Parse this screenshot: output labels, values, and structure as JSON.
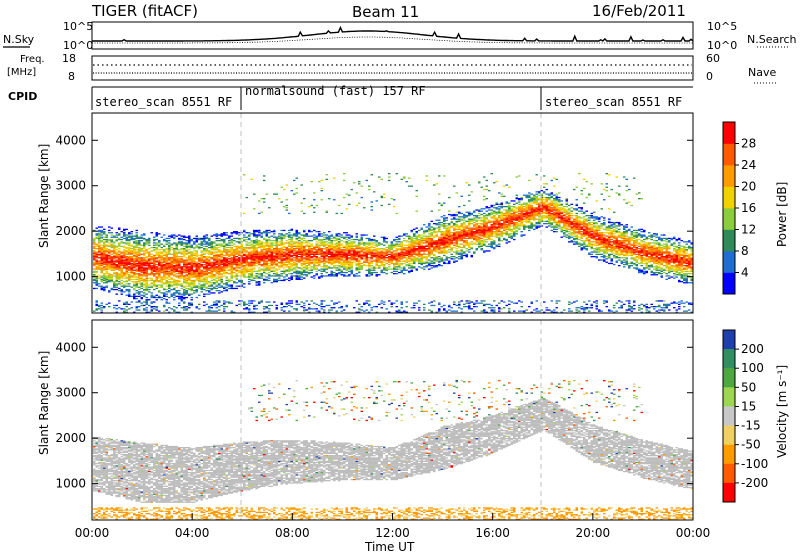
{
  "header": {
    "radar": "TIGER (fitACF)",
    "beam": "Beam 11",
    "date": "16/Feb/2011"
  },
  "top_panels": {
    "nsky_label": "N.Sky",
    "nsearch_label": "N.Search",
    "noise_ticks_left": [
      "10^5",
      "10^0"
    ],
    "noise_ticks_right": [
      "10^5",
      "10^0"
    ],
    "freq_label_1": "Freq.",
    "freq_label_2": "[MHz]",
    "freq_ticks": [
      "18",
      "8"
    ],
    "nave_label": "Nave",
    "nave_ticks": [
      "60",
      "0"
    ],
    "cpid_label": "CPID"
  },
  "cpid_segments": [
    {
      "label": "stereo_scan 8551 RF",
      "start_h": 0,
      "end_h": 6
    },
    {
      "label": "normalsound (fast) 157 RF",
      "start_h": 6,
      "end_h": 18
    },
    {
      "label": "stereo_scan 8551 RF",
      "start_h": 18,
      "end_h": 24
    }
  ],
  "chart_data": [
    {
      "type": "heatmap",
      "panel": "power",
      "xlabel": "",
      "ylabel": "Slant Range [km]",
      "xlim": [
        0,
        24
      ],
      "ylim": [
        200,
        4600
      ],
      "yticks": [
        "1000",
        "2000",
        "3000",
        "4000"
      ],
      "colorbar_label": "Power [dB]",
      "colorbar_ticks": [
        "4",
        "8",
        "12",
        "16",
        "20",
        "24",
        "28"
      ],
      "colorbar_colors": [
        "#0000ff",
        "#1e6ed2",
        "#2e8b57",
        "#8ccd3c",
        "#f0d200",
        "#ff9a00",
        "#ff5a00",
        "#ff0000"
      ],
      "echo_bands": [
        {
          "x": [
            0,
            2,
            4,
            6,
            8,
            10,
            12,
            14,
            16,
            18,
            20,
            22,
            24
          ],
          "center_km": [
            1450,
            1250,
            1200,
            1400,
            1500,
            1500,
            1450,
            1800,
            2100,
            2550,
            1900,
            1550,
            1300
          ],
          "width_km": [
            500,
            550,
            500,
            450,
            400,
            350,
            300,
            400,
            350,
            300,
            350,
            350,
            350
          ]
        }
      ]
    },
    {
      "type": "heatmap",
      "panel": "velocity",
      "xlabel": "Time UT",
      "ylabel": "Slant Range [km]",
      "xlim": [
        0,
        24
      ],
      "ylim": [
        200,
        4600
      ],
      "xticks": [
        "00:00",
        "04:00",
        "08:00",
        "12:00",
        "16:00",
        "20:00",
        "00:00"
      ],
      "yticks": [
        "1000",
        "2000",
        "3000",
        "4000"
      ],
      "colorbar_label": "Velocity [m s⁻¹]",
      "colorbar_ticks": [
        "200",
        "100",
        "50",
        "15",
        "-15",
        "-50",
        "-100",
        "-200"
      ],
      "colorbar_colors": [
        "#1f3fae",
        "#2f8f5f",
        "#4fa83f",
        "#9fd64f",
        "#c8c8c8",
        "#f0d060",
        "#ff9a00",
        "#ff5a00",
        "#ff0000"
      ]
    }
  ],
  "colors": {
    "ground_scatter": "#bdbdbd",
    "guide_line": "#bfbfbf"
  }
}
